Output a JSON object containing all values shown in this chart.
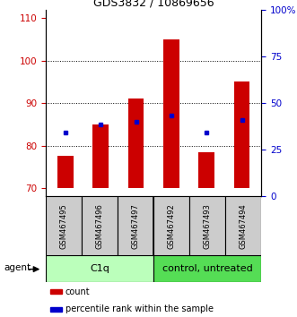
{
  "title": "GDS3832 / 10869656",
  "samples": [
    "GSM467495",
    "GSM467496",
    "GSM467497",
    "GSM467492",
    "GSM467493",
    "GSM467494"
  ],
  "bar_bottoms": [
    70,
    70,
    70,
    70,
    70,
    70
  ],
  "bar_tops": [
    77.5,
    85,
    91,
    105,
    78.5,
    95
  ],
  "percentile_values": [
    83,
    85,
    85.5,
    87,
    83,
    86
  ],
  "ylim_left": [
    68,
    112
  ],
  "ylim_right": [
    0,
    100
  ],
  "yticks_left": [
    70,
    80,
    90,
    100,
    110
  ],
  "yticks_right": [
    0,
    25,
    50,
    75,
    100
  ],
  "ytick_labels_right": [
    "0",
    "25",
    "50",
    "75",
    "100%"
  ],
  "bar_color": "#cc0000",
  "dot_color": "#0000cc",
  "grid_yticks": [
    80,
    90,
    100
  ],
  "groups": [
    {
      "label": "C1q",
      "start": 0,
      "end": 3,
      "color": "#bbffbb"
    },
    {
      "label": "control, untreated",
      "start": 3,
      "end": 6,
      "color": "#55dd55"
    }
  ],
  "agent_label": "agent",
  "legend_items": [
    {
      "label": "count",
      "color": "#cc0000"
    },
    {
      "label": "percentile rank within the sample",
      "color": "#0000cc"
    }
  ],
  "bar_width": 0.45,
  "title_fontsize": 9,
  "tick_fontsize": 7.5,
  "sample_fontsize": 6,
  "group_fontsize": 8,
  "legend_fontsize": 7
}
